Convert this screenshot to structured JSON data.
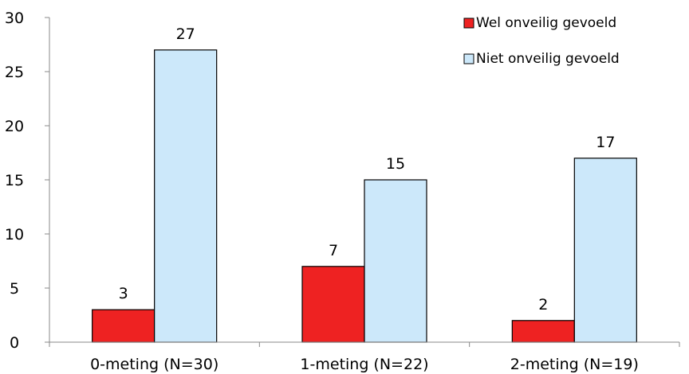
{
  "chart_data": {
    "type": "bar",
    "categories": [
      "0-meting (N=30)",
      "1-meting (N=22)",
      "2-meting (N=19)"
    ],
    "series": [
      {
        "name": "Wel onveilig gevoeld",
        "values": [
          3,
          7,
          2
        ],
        "color": "#ee2222",
        "stroke": "#000000"
      },
      {
        "name": "Niet onveilig gevoeld",
        "values": [
          27,
          15,
          17
        ],
        "color": "#cce8fa",
        "stroke": "#000000"
      }
    ],
    "title": "",
    "xlabel": "",
    "ylabel": "",
    "ylim": [
      0,
      30
    ],
    "yticks": [
      0,
      5,
      10,
      15,
      20,
      25,
      30
    ],
    "grid": false,
    "legend_position": "top-right",
    "data_labels": true
  }
}
